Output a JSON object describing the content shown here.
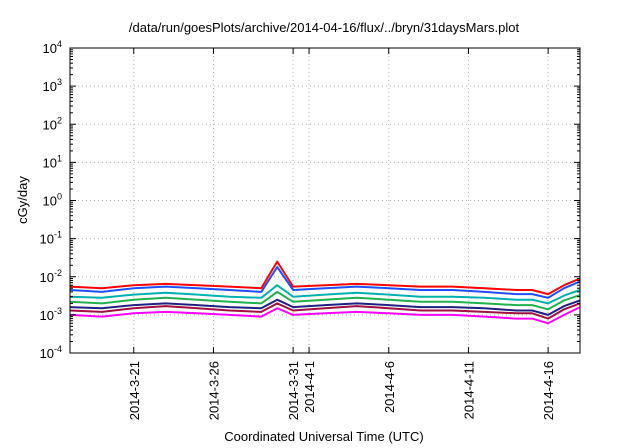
{
  "chart_data": {
    "type": "line",
    "title": "/data/run/goesPlots/archive/2014-04-16/flux/../bryn/31daysMars.plot",
    "xlabel": "Coordinated Universal Time (UTC)",
    "ylabel": "cGy/day",
    "yscale": "log",
    "ylim": [
      "1e-4",
      "1e4"
    ],
    "xlim": [
      "2014-03-17",
      "2014-04-18"
    ],
    "grid": true,
    "y_ticks": [
      {
        "mantissa": "10",
        "exp": "-4"
      },
      {
        "mantissa": "10",
        "exp": "-3"
      },
      {
        "mantissa": "10",
        "exp": "-2"
      },
      {
        "mantissa": "10",
        "exp": "-1"
      },
      {
        "mantissa": "10",
        "exp": "0"
      },
      {
        "mantissa": "10",
        "exp": "1"
      },
      {
        "mantissa": "10",
        "exp": "2"
      },
      {
        "mantissa": "10",
        "exp": "3"
      },
      {
        "mantissa": "10",
        "exp": "4"
      }
    ],
    "x_ticks": [
      "2014-3-21",
      "2014-3-26",
      "2014-3-31",
      "2014-4-1",
      "2014-4-6",
      "2014-4-11",
      "2014-4-16"
    ],
    "series_colors": [
      "#ff0000",
      "#1f4fff",
      "#00b0b0",
      "#20b050",
      "#202080",
      "#a01040",
      "#ff00ff"
    ],
    "series": [
      {
        "color": "#ff0000",
        "x": [
          "2014-03-17",
          "2014-03-19",
          "2014-03-21",
          "2014-03-23",
          "2014-03-25",
          "2014-03-27",
          "2014-03-29",
          "2014-03-30",
          "2014-03-31",
          "2014-04-02",
          "2014-04-04",
          "2014-04-06",
          "2014-04-08",
          "2014-04-10",
          "2014-04-12",
          "2014-04-14",
          "2014-04-15",
          "2014-04-16",
          "2014-04-17",
          "2014-04-18"
        ],
        "values": [
          0.0055,
          0.005,
          0.006,
          0.0065,
          0.006,
          0.0055,
          0.005,
          0.025,
          0.0055,
          0.006,
          0.0065,
          0.006,
          0.0055,
          0.0055,
          0.005,
          0.0045,
          0.0045,
          0.0035,
          0.006,
          0.009
        ]
      },
      {
        "color": "#1f4fff",
        "x": [
          "2014-03-17",
          "2014-03-19",
          "2014-03-21",
          "2014-03-23",
          "2014-03-25",
          "2014-03-27",
          "2014-03-29",
          "2014-03-30",
          "2014-03-31",
          "2014-04-02",
          "2014-04-04",
          "2014-04-06",
          "2014-04-08",
          "2014-04-10",
          "2014-04-12",
          "2014-04-14",
          "2014-04-15",
          "2014-04-16",
          "2014-04-17",
          "2014-04-18"
        ],
        "values": [
          0.0045,
          0.004,
          0.005,
          0.0055,
          0.005,
          0.0045,
          0.004,
          0.018,
          0.0045,
          0.005,
          0.0055,
          0.005,
          0.0045,
          0.0045,
          0.004,
          0.0035,
          0.0035,
          0.0028,
          0.005,
          0.0075
        ]
      },
      {
        "color": "#00b0b0",
        "x": [
          "2014-03-17",
          "2014-03-19",
          "2014-03-21",
          "2014-03-23",
          "2014-03-25",
          "2014-03-27",
          "2014-03-29",
          "2014-03-30",
          "2014-03-31",
          "2014-04-02",
          "2014-04-04",
          "2014-04-06",
          "2014-04-08",
          "2014-04-10",
          "2014-04-12",
          "2014-04-14",
          "2014-04-15",
          "2014-04-16",
          "2014-04-17",
          "2014-04-18"
        ],
        "values": [
          0.003,
          0.0028,
          0.0034,
          0.0038,
          0.0034,
          0.003,
          0.0028,
          0.006,
          0.003,
          0.0034,
          0.0038,
          0.0034,
          0.003,
          0.003,
          0.0028,
          0.0025,
          0.0025,
          0.002,
          0.0032,
          0.0045
        ]
      },
      {
        "color": "#20b050",
        "x": [
          "2014-03-17",
          "2014-03-19",
          "2014-03-21",
          "2014-03-23",
          "2014-03-25",
          "2014-03-27",
          "2014-03-29",
          "2014-03-30",
          "2014-03-31",
          "2014-04-02",
          "2014-04-04",
          "2014-04-06",
          "2014-04-08",
          "2014-04-10",
          "2014-04-12",
          "2014-04-14",
          "2014-04-15",
          "2014-04-16",
          "2014-04-17",
          "2014-04-18"
        ],
        "values": [
          0.0022,
          0.002,
          0.0025,
          0.0028,
          0.0025,
          0.0022,
          0.002,
          0.004,
          0.0022,
          0.0025,
          0.0028,
          0.0025,
          0.0022,
          0.0022,
          0.002,
          0.0018,
          0.0018,
          0.0014,
          0.0024,
          0.0033
        ]
      },
      {
        "color": "#202080",
        "x": [
          "2014-03-17",
          "2014-03-19",
          "2014-03-21",
          "2014-03-23",
          "2014-03-25",
          "2014-03-27",
          "2014-03-29",
          "2014-03-30",
          "2014-03-31",
          "2014-04-02",
          "2014-04-04",
          "2014-04-06",
          "2014-04-08",
          "2014-04-10",
          "2014-04-12",
          "2014-04-14",
          "2014-04-15",
          "2014-04-16",
          "2014-04-17",
          "2014-04-18"
        ],
        "values": [
          0.0016,
          0.0015,
          0.0018,
          0.002,
          0.0018,
          0.0016,
          0.0015,
          0.0025,
          0.0016,
          0.0018,
          0.002,
          0.0018,
          0.0016,
          0.0016,
          0.0015,
          0.0013,
          0.0013,
          0.001,
          0.0017,
          0.0024
        ]
      },
      {
        "color": "#a01040",
        "x": [
          "2014-03-17",
          "2014-03-19",
          "2014-03-21",
          "2014-03-23",
          "2014-03-25",
          "2014-03-27",
          "2014-03-29",
          "2014-03-30",
          "2014-03-31",
          "2014-04-02",
          "2014-04-04",
          "2014-04-06",
          "2014-04-08",
          "2014-04-10",
          "2014-04-12",
          "2014-04-14",
          "2014-04-15",
          "2014-04-16",
          "2014-04-17",
          "2014-04-18"
        ],
        "values": [
          0.0013,
          0.0012,
          0.0015,
          0.0017,
          0.0015,
          0.0013,
          0.0012,
          0.002,
          0.0013,
          0.0015,
          0.0017,
          0.0015,
          0.0013,
          0.0013,
          0.0012,
          0.0011,
          0.0011,
          0.0008,
          0.0014,
          0.002
        ]
      },
      {
        "color": "#ff00ff",
        "x": [
          "2014-03-17",
          "2014-03-19",
          "2014-03-21",
          "2014-03-23",
          "2014-03-25",
          "2014-03-27",
          "2014-03-29",
          "2014-03-30",
          "2014-03-31",
          "2014-04-02",
          "2014-04-04",
          "2014-04-06",
          "2014-04-08",
          "2014-04-10",
          "2014-04-12",
          "2014-04-14",
          "2014-04-15",
          "2014-04-16",
          "2014-04-17",
          "2014-04-18"
        ],
        "values": [
          0.001,
          0.0009,
          0.0011,
          0.0012,
          0.0011,
          0.001,
          0.0009,
          0.0015,
          0.001,
          0.0011,
          0.0012,
          0.0011,
          0.001,
          0.001,
          0.0009,
          0.0008,
          0.0008,
          0.0006,
          0.001,
          0.0016
        ]
      }
    ]
  }
}
